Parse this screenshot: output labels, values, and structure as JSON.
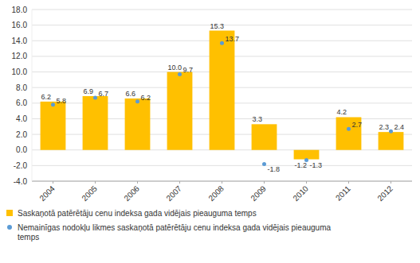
{
  "chart_data": {
    "type": "bar",
    "categories": [
      "2004",
      "2005",
      "2006",
      "2007",
      "2008",
      "2009",
      "2010",
      "2011",
      "2012"
    ],
    "series": [
      {
        "name": "Saskaņotā patērētāju cenu indeksa gada vidējais pieauguma temps",
        "type": "bar",
        "color": "#FFC000",
        "values": [
          6.2,
          6.9,
          6.6,
          10.0,
          15.3,
          3.3,
          -1.2,
          4.2,
          2.3
        ],
        "value_labels": [
          "6.2",
          "6.9",
          "6.6",
          "10.0",
          "15.3",
          "3.3",
          "-1.2",
          "4.2",
          "2.3"
        ]
      },
      {
        "name": "Nemainīgas nodokļu likmes saskaņotā patērētāju cenu indeksa gada vidējais pieauguma\ntemps",
        "type": "scatter",
        "color": "#5B9BD5",
        "marker": "circle",
        "values": [
          5.8,
          6.7,
          6.2,
          9.7,
          13.7,
          -1.8,
          -1.3,
          2.7,
          2.4
        ]
      }
    ],
    "ylim": [
      -4.0,
      18.0
    ],
    "yticks": [
      {
        "value": -4.0,
        "label": "-4.0"
      },
      {
        "value": -2.0,
        "label": "-2.0"
      },
      {
        "value": 0.0,
        "label": "0.0"
      },
      {
        "value": 2.0,
        "label": "2.0"
      },
      {
        "value": 4.0,
        "label": "4.0"
      },
      {
        "value": 6.0,
        "label": "6.0"
      },
      {
        "value": 8.0,
        "label": "8.0"
      },
      {
        "value": 10.0,
        "label": "10.0"
      },
      {
        "value": 12.0,
        "label": "12.0"
      },
      {
        "value": 14.0,
        "label": "14.0"
      },
      {
        "value": 16.0,
        "label": "16.0"
      },
      {
        "value": 18.0,
        "label": "18.0"
      }
    ],
    "grid": true,
    "data_labels": true,
    "legend": "bottom"
  }
}
